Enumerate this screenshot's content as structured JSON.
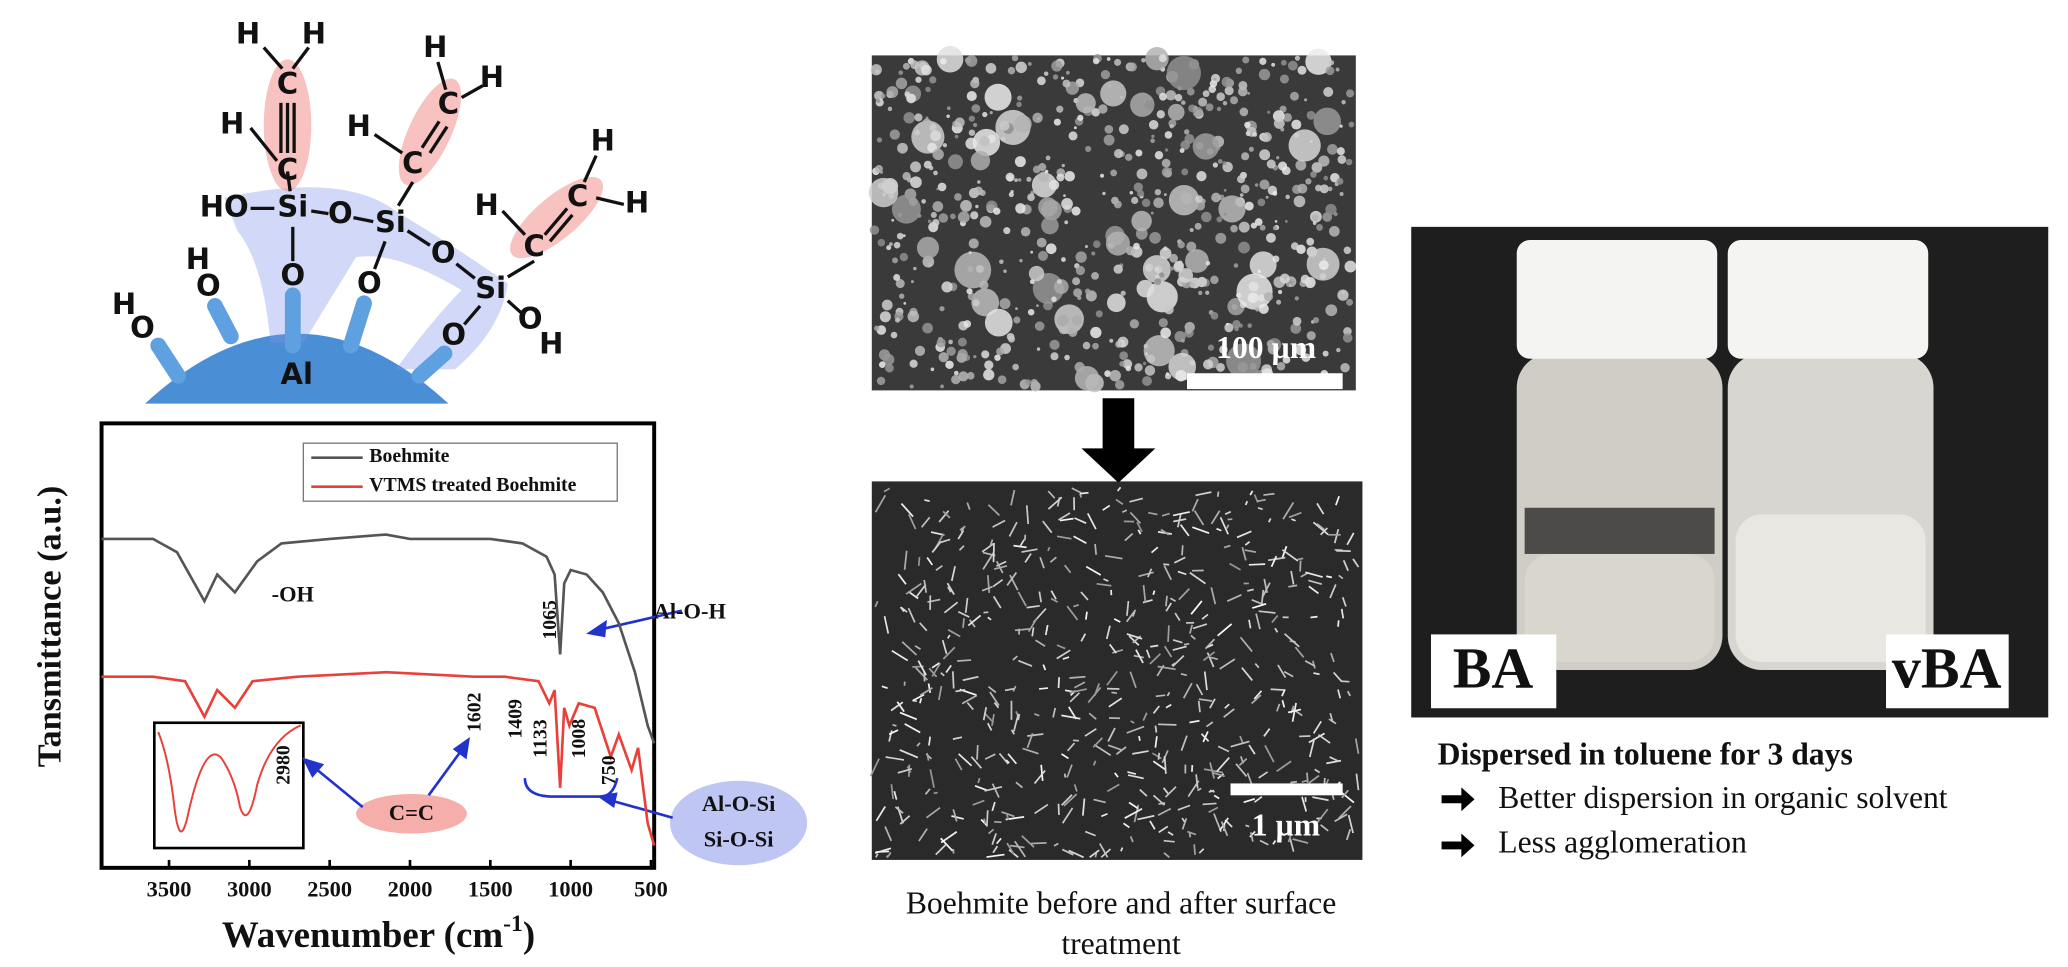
{
  "molecule": {
    "atoms": [
      "H",
      "H",
      "C",
      "H",
      "C",
      "H",
      "H",
      "C",
      "H",
      "C",
      "H",
      "H",
      "C",
      "H",
      "C",
      "HO",
      "Si",
      "O",
      "Si",
      "O",
      "Si",
      "O",
      "H",
      "O",
      "O",
      "O",
      "H",
      "O",
      "H",
      "O",
      "Al"
    ]
  },
  "chart_data": {
    "type": "line",
    "y_label": "Tansmittance (a.u.)",
    "x_label": [
      "Wavenumber (cm",
      "-1",
      ")"
    ],
    "xlim": [
      3920,
      480
    ],
    "xticks": [
      3500,
      3000,
      2500,
      2000,
      1500,
      1000,
      500
    ],
    "ylim": [
      0,
      100
    ],
    "legend": "top-right",
    "series": [
      {
        "name": "Boehmite",
        "color": "#555555",
        "x": [
          3920,
          3600,
          3450,
          3280,
          3200,
          3090,
          2950,
          2800,
          2500,
          2150,
          2000,
          1500,
          1300,
          1150,
          1100,
          1065,
          1040,
          1000,
          900,
          800,
          700,
          600,
          520,
          480
        ],
        "values": [
          74,
          74,
          71,
          60,
          66,
          62,
          69,
          73,
          74,
          75,
          74,
          74,
          73,
          70,
          66,
          48,
          64,
          67,
          66,
          62,
          55,
          44,
          32,
          28
        ]
      },
      {
        "name": "VTMS treated Boehmite",
        "color": "#e8413c",
        "x": [
          3920,
          3600,
          3400,
          3280,
          3200,
          3090,
          2980,
          2700,
          2150,
          1602,
          1409,
          1200,
          1133,
          1100,
          1065,
          1040,
          1008,
          950,
          850,
          750,
          700,
          620,
          580,
          520,
          480
        ],
        "values": [
          43,
          43,
          42,
          34,
          40,
          36,
          42,
          43,
          44,
          43,
          43,
          42,
          37,
          40,
          18,
          36,
          32,
          37,
          36,
          25,
          30,
          22,
          27,
          10,
          5
        ]
      }
    ],
    "annotations": [
      "-OH",
      "Al-O-H",
      "1065",
      "1602",
      "1409",
      "1133",
      "1008",
      "750",
      "2980",
      "C=C",
      "Al-O-Si",
      "Si-O-Si"
    ]
  },
  "sem": {
    "top_scale": "100 µm",
    "bottom_scale": "1 µm",
    "caption": [
      "Boehmite before and after surface",
      "treatment"
    ]
  },
  "photo": {
    "labels": [
      "BA",
      "vBA"
    ]
  },
  "notes": {
    "title": "Dispersed in toluene for 3 days",
    "items": [
      "Better dispersion in organic solvent",
      "Less agglomeration"
    ]
  }
}
